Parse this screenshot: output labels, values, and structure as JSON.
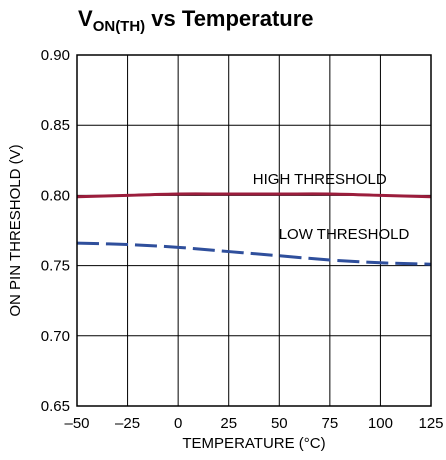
{
  "chart_data": {
    "type": "line",
    "title_main": "V",
    "title_sub": "ON(TH)",
    "title_rest": " vs Temperature",
    "xlabel": "TEMPERATURE (°C)",
    "ylabel": "ON PIN THRESHOLD (V)",
    "xlim": [
      -50,
      125
    ],
    "ylim": [
      0.65,
      0.9
    ],
    "x_ticks": [
      -50,
      -25,
      0,
      25,
      50,
      75,
      100,
      125
    ],
    "x_tick_labels": [
      "–50",
      "–25",
      "0",
      "25",
      "50",
      "75",
      "100",
      "125"
    ],
    "y_ticks": [
      0.65,
      0.7,
      0.75,
      0.8,
      0.85,
      0.9
    ],
    "y_tick_labels": [
      "0.65",
      "0.70",
      "0.75",
      "0.80",
      "0.85",
      "0.90"
    ],
    "grid": true,
    "series": [
      {
        "name": "HIGH THRESHOLD",
        "color": "#9b1d3c",
        "dash": "solid",
        "x": [
          -50,
          -25,
          0,
          25,
          50,
          75,
          100,
          125
        ],
        "y": [
          0.799,
          0.8,
          0.801,
          0.801,
          0.801,
          0.801,
          0.8,
          0.799
        ]
      },
      {
        "name": "LOW THRESHOLD",
        "color": "#2f4f9c",
        "dash": "dashed",
        "x": [
          -50,
          -25,
          0,
          25,
          50,
          75,
          100,
          125
        ],
        "y": [
          0.766,
          0.765,
          0.763,
          0.76,
          0.757,
          0.754,
          0.752,
          0.751
        ]
      }
    ],
    "annotations": [
      {
        "text": "HIGH THRESHOLD",
        "x": 70,
        "y": 0.808
      },
      {
        "text": "LOW THRESHOLD",
        "x": 82,
        "y": 0.769
      }
    ]
  }
}
